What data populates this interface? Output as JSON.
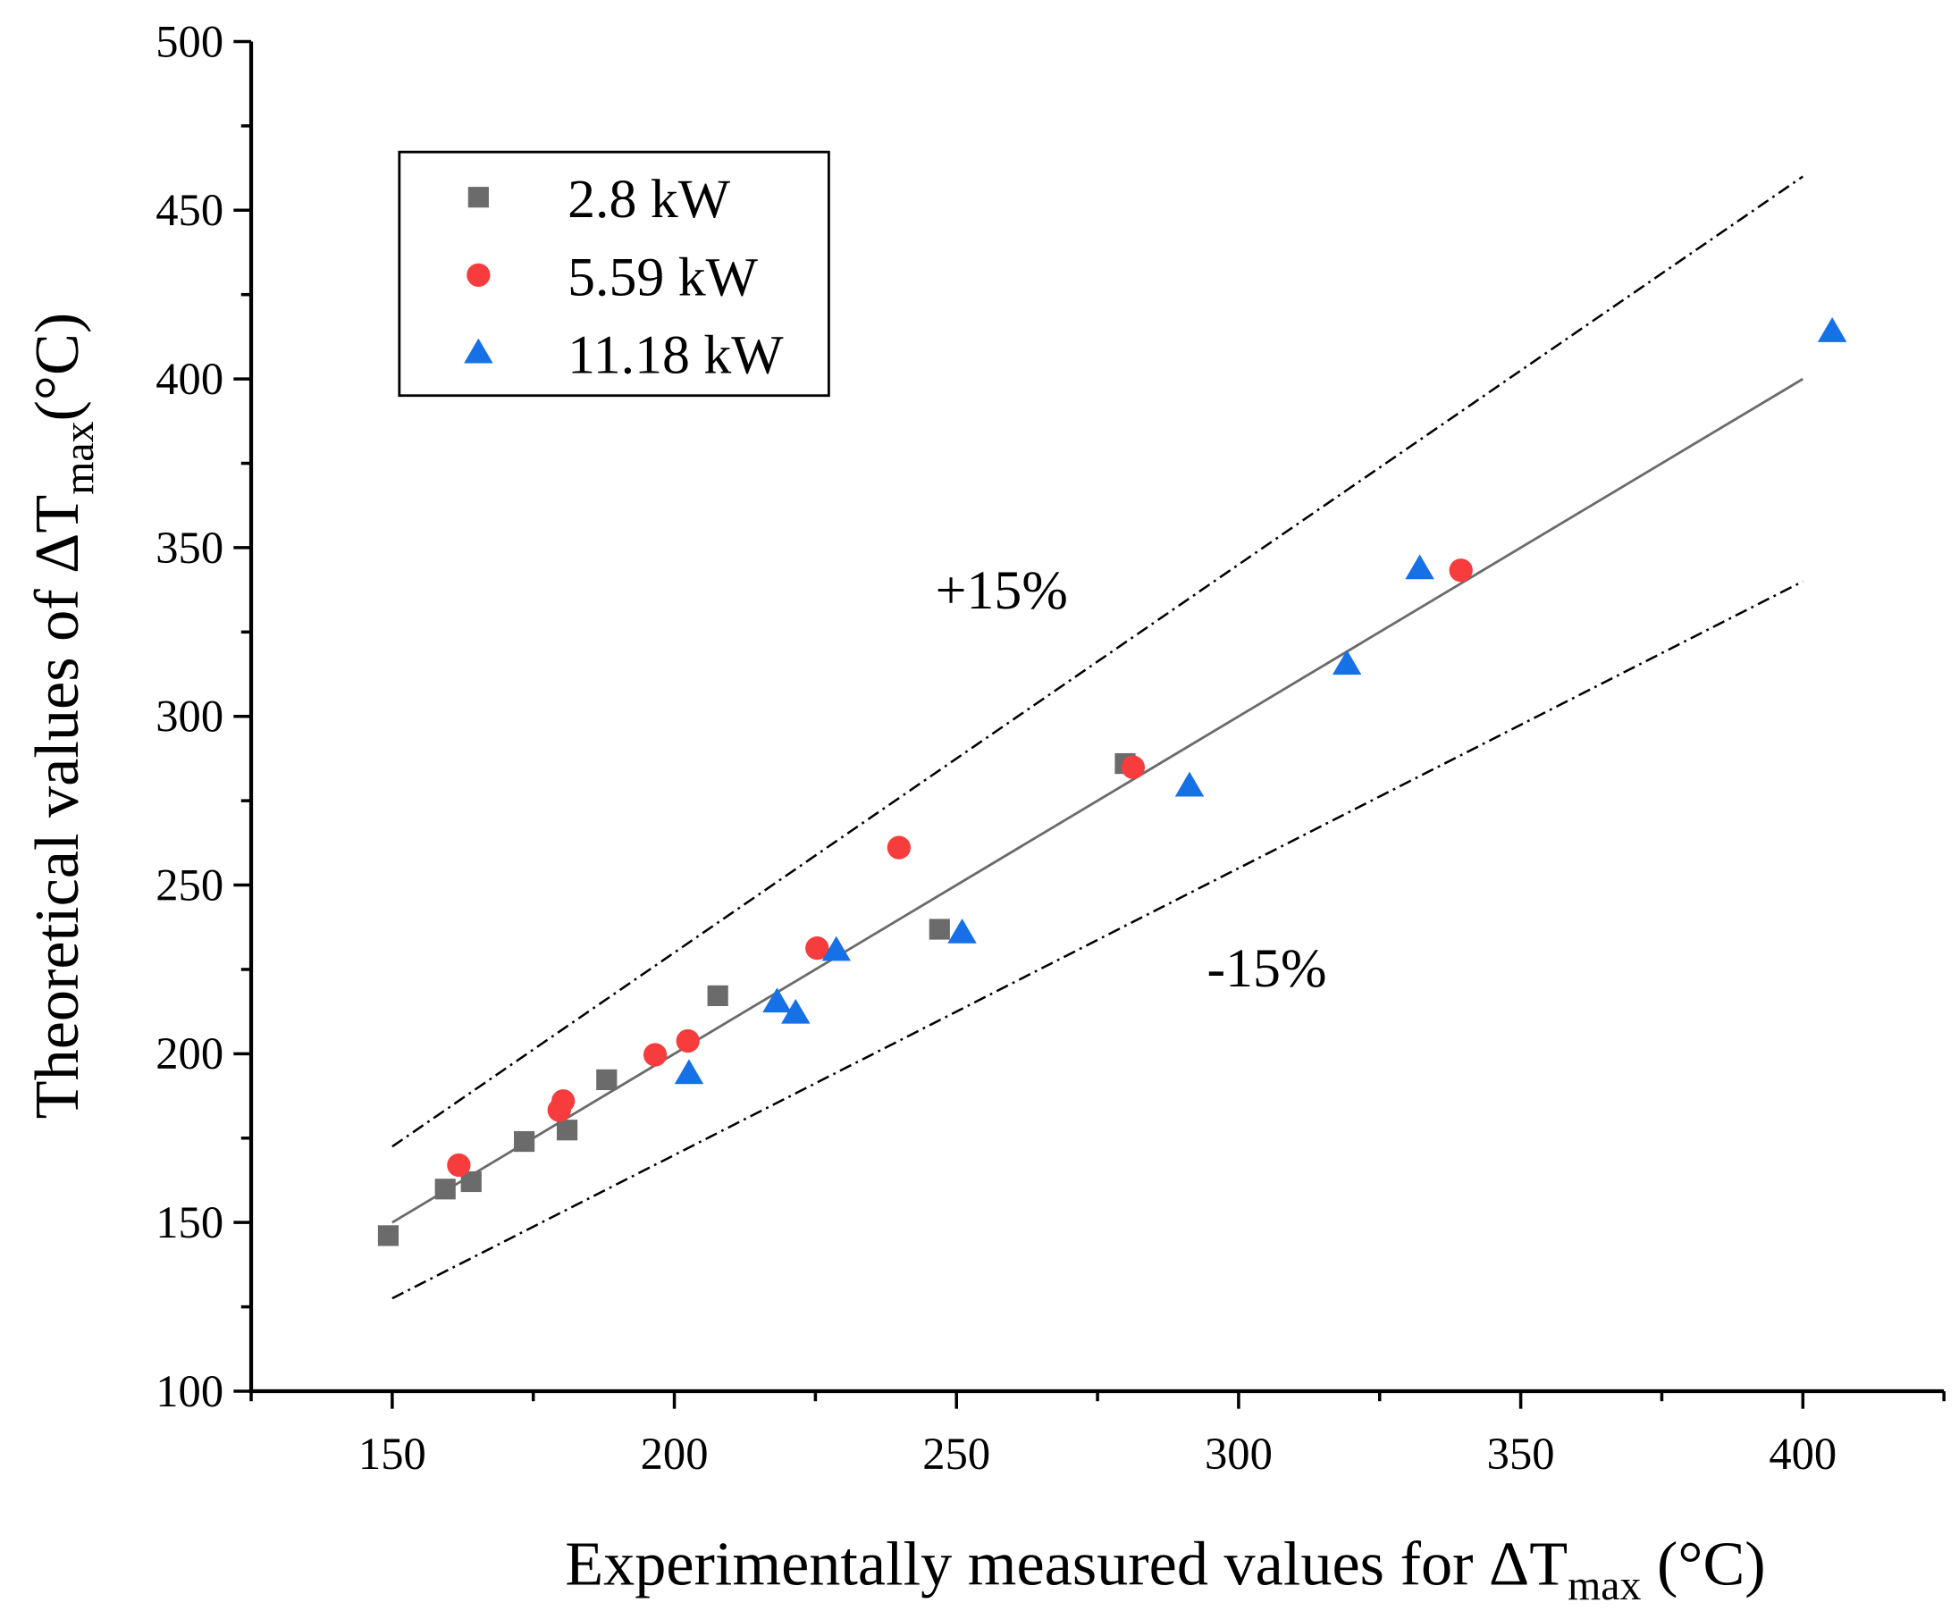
{
  "chart_data": {
    "type": "scatter",
    "xlabel": "Experimentally measured values for ΔT",
    "xlabel_sub": "max",
    "xlabel_unit": " (°C)",
    "ylabel": "Theoretical values of ΔT",
    "ylabel_sub": "max",
    "ylabel_unit": "(°C)",
    "xlim": [
      125,
      425
    ],
    "ylim": [
      100,
      500
    ],
    "xticks": [
      150,
      200,
      250,
      300,
      350,
      400
    ],
    "yticks": [
      100,
      150,
      200,
      250,
      300,
      350,
      400,
      450,
      500
    ],
    "legend_position": "top-left",
    "series": [
      {
        "name": "2.8 kW",
        "marker": "square",
        "color": "#6b6b6b",
        "x": [
          149.3,
          159.4,
          164.0,
          173.4,
          181.0,
          188.0,
          207.7,
          247.0,
          279.9
        ],
        "y": [
          146.1,
          159.9,
          162.1,
          174.0,
          177.4,
          192.3,
          217.2,
          236.9,
          286.0
        ]
      },
      {
        "name": "5.59 kW",
        "marker": "circle",
        "color": "#f63c3c",
        "x": [
          161.8,
          179.6,
          180.3,
          196.6,
          202.4,
          225.3,
          239.8,
          281.3,
          339.4
        ],
        "y": [
          167.0,
          183.3,
          186.0,
          199.7,
          203.8,
          231.3,
          261.1,
          284.9,
          343.3
        ]
      },
      {
        "name": "11.18 kW",
        "marker": "triangle",
        "color": "#1670e6",
        "x": [
          202.6,
          218.2,
          221.5,
          228.7,
          251.0,
          291.3,
          319.2,
          332.1,
          405.2
        ],
        "y": [
          194.1,
          215.3,
          212.0,
          230.6,
          235.8,
          279.3,
          315.4,
          343.7,
          414.0
        ]
      }
    ],
    "reference_lines": [
      {
        "name": "y = x",
        "slope": 1.0,
        "x_range": [
          150,
          400
        ],
        "style": "solid",
        "color": "#6b6b6b"
      },
      {
        "name": "+15%",
        "slope": 1.15,
        "x_range": [
          150,
          400
        ],
        "style": "dashdot",
        "color": "#000000"
      },
      {
        "name": "-15%",
        "slope": 0.85,
        "x_range": [
          150,
          400
        ],
        "style": "dashdot",
        "color": "#000000"
      }
    ],
    "annotations": [
      {
        "text": "+15%",
        "x": 258,
        "y": 332
      },
      {
        "text": "-15%",
        "x": 305,
        "y": 220
      }
    ]
  }
}
